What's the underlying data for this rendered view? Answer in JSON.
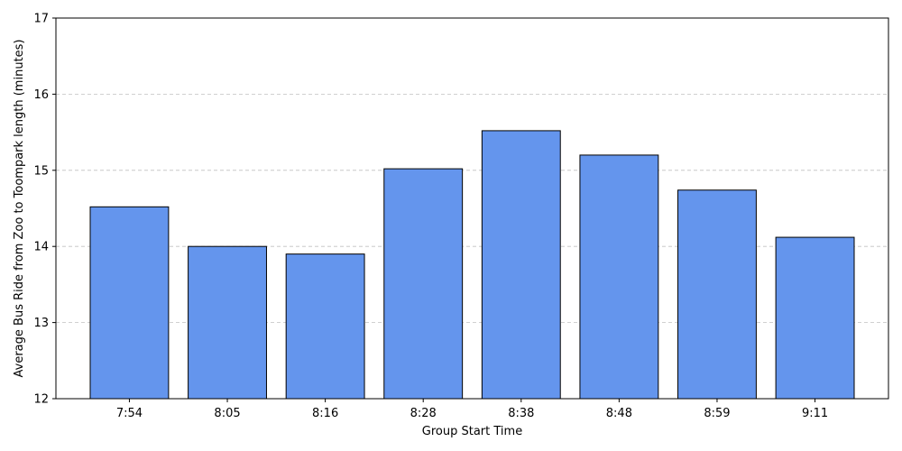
{
  "chart_data": {
    "type": "bar",
    "title": "",
    "xlabel": "Group Start Time",
    "ylabel": "Average Bus Ride from Zoo to Toompark length (minutes)",
    "categories": [
      "7:54",
      "8:05",
      "8:16",
      "8:28",
      "8:38",
      "8:48",
      "8:59",
      "9:11"
    ],
    "values": [
      14.52,
      14.0,
      13.9,
      15.02,
      15.52,
      15.2,
      14.74,
      14.12
    ],
    "ylim": [
      12,
      17
    ],
    "yticks": [
      "12",
      "13",
      "14",
      "15",
      "16",
      "17"
    ],
    "grid": "horizontal dashed",
    "legend": "none",
    "bar_color": "#6495ed",
    "edge_color": "#000000"
  }
}
